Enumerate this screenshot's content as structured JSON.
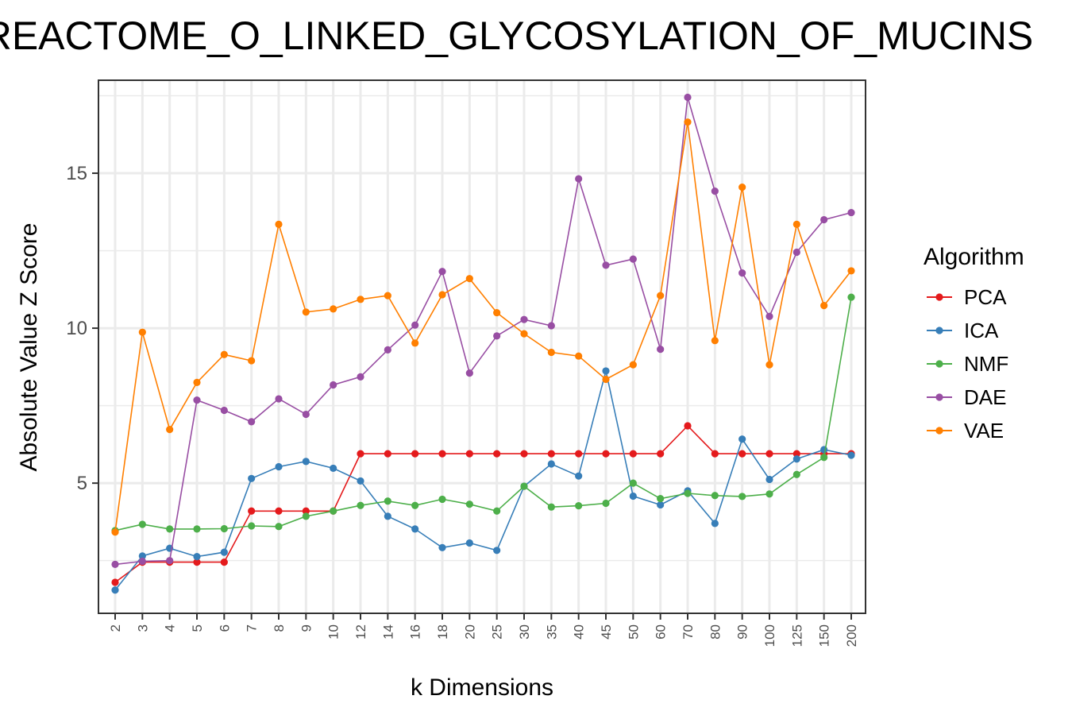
{
  "chart_data": {
    "type": "line",
    "title": "REACTOME_O_LINKED_GLYCOSYLATION_OF_MUCINS",
    "xlabel": "k Dimensions",
    "ylabel": "Absolute Value Z Score",
    "categories": [
      "2",
      "3",
      "4",
      "5",
      "6",
      "7",
      "8",
      "9",
      "10",
      "12",
      "14",
      "16",
      "18",
      "20",
      "25",
      "30",
      "35",
      "40",
      "45",
      "50",
      "60",
      "70",
      "80",
      "90",
      "100",
      "125",
      "150",
      "200"
    ],
    "yticks": [
      5,
      10,
      15
    ],
    "ylim": [
      0.8,
      18.0
    ],
    "grid": true,
    "legend": {
      "title": "Algorithm",
      "position": "right"
    },
    "series": [
      {
        "name": "PCA",
        "color": "#e41a1c",
        "values": [
          1.8,
          2.45,
          2.45,
          2.45,
          2.45,
          4.1,
          4.1,
          4.1,
          4.1,
          5.95,
          5.95,
          5.95,
          5.95,
          5.95,
          5.95,
          5.95,
          5.95,
          5.95,
          5.95,
          5.95,
          5.95,
          6.85,
          5.95,
          5.95,
          5.95,
          5.95,
          5.95,
          5.95
        ]
      },
      {
        "name": "ICA",
        "color": "#377eb8",
        "values": [
          1.55,
          2.65,
          2.9,
          2.63,
          2.77,
          5.15,
          5.53,
          5.7,
          5.48,
          5.07,
          3.93,
          3.52,
          2.92,
          3.07,
          2.83,
          4.9,
          5.62,
          5.23,
          8.62,
          4.58,
          4.3,
          4.75,
          3.7,
          6.42,
          5.12,
          5.78,
          6.08,
          5.9
        ]
      },
      {
        "name": "NMF",
        "color": "#4daf4a",
        "values": [
          3.47,
          3.67,
          3.52,
          3.52,
          3.53,
          3.62,
          3.6,
          3.93,
          4.1,
          4.28,
          4.42,
          4.28,
          4.48,
          4.32,
          4.1,
          4.9,
          4.23,
          4.27,
          4.35,
          5.0,
          4.5,
          4.67,
          4.6,
          4.57,
          4.65,
          5.28,
          5.83,
          11.0
        ]
      },
      {
        "name": "DAE",
        "color": "#984ea3",
        "values": [
          2.38,
          2.48,
          2.5,
          7.68,
          7.35,
          6.98,
          7.72,
          7.22,
          8.17,
          8.43,
          9.3,
          10.1,
          11.83,
          8.55,
          9.75,
          10.28,
          10.08,
          14.82,
          12.03,
          12.23,
          9.32,
          17.45,
          14.42,
          11.78,
          10.38,
          12.45,
          13.5,
          13.73
        ]
      },
      {
        "name": "VAE",
        "color": "#ff7f00",
        "values": [
          3.42,
          9.87,
          6.73,
          8.25,
          9.15,
          8.95,
          13.35,
          10.52,
          10.62,
          10.93,
          11.05,
          9.52,
          11.08,
          11.6,
          10.5,
          9.82,
          9.22,
          9.1,
          8.35,
          8.82,
          11.05,
          16.65,
          9.6,
          14.55,
          8.82,
          13.35,
          10.73,
          11.85
        ]
      }
    ]
  }
}
